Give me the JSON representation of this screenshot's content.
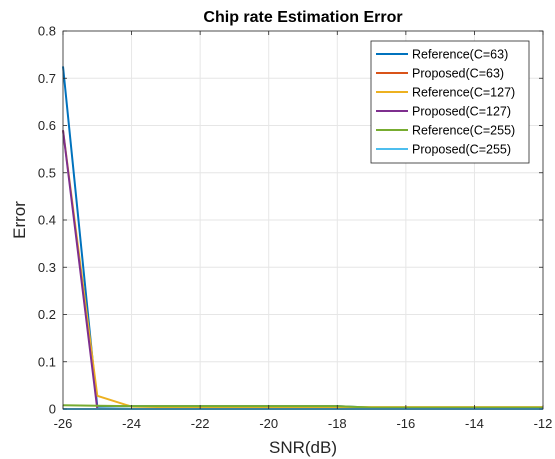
{
  "chart_data": {
    "type": "line",
    "title": "Chip rate Estimation Error",
    "xlabel": "SNR(dB)",
    "ylabel": "Error",
    "xlim": [
      -26,
      -12
    ],
    "ylim": [
      0,
      0.8
    ],
    "x_ticks": [
      -26,
      -24,
      -22,
      -20,
      -18,
      -16,
      -14,
      -12
    ],
    "y_ticks": [
      0,
      0.1,
      0.2,
      0.3,
      0.4,
      0.5,
      0.6,
      0.7,
      0.8
    ],
    "grid": true,
    "legend_position": "top-right",
    "x": [
      -26,
      -25,
      -24,
      -23,
      -22,
      -21,
      -20,
      -19,
      -18,
      -17,
      -16,
      -15,
      -14,
      -13,
      -12
    ],
    "series": [
      {
        "name": "Reference(C=63)",
        "color": "#0072BD",
        "values": [
          0.725,
          0.005,
          0.006,
          0.006,
          0.006,
          0.006,
          0.006,
          0.006,
          0.006,
          0.003,
          0.003,
          0.003,
          0.003,
          0.003,
          0.003
        ]
      },
      {
        "name": "Proposed(C=63)",
        "color": "#D95319",
        "values": [
          0.0,
          0.0,
          0.0,
          0.0,
          0.0,
          0.0,
          0.0,
          0.0,
          0.0,
          0.0,
          0.0,
          0.0,
          0.0,
          0.0,
          0.0
        ]
      },
      {
        "name": "Reference(C=127)",
        "color": "#EDB120",
        "values": [
          0.59,
          0.028,
          0.005,
          0.004,
          0.004,
          0.004,
          0.004,
          0.004,
          0.004,
          0.004,
          0.004,
          0.004,
          0.004,
          0.004,
          0.004
        ]
      },
      {
        "name": "Proposed(C=127)",
        "color": "#7E2F8E",
        "values": [
          0.59,
          0.0,
          0.0,
          0.0,
          0.0,
          0.0,
          0.0,
          0.0,
          0.0,
          0.0,
          0.0,
          0.0,
          0.0,
          0.0,
          0.0
        ]
      },
      {
        "name": "Reference(C=255)",
        "color": "#77AC30",
        "values": [
          0.008,
          0.007,
          0.006,
          0.006,
          0.006,
          0.006,
          0.006,
          0.006,
          0.006,
          0.003,
          0.003,
          0.003,
          0.003,
          0.003,
          0.003
        ]
      },
      {
        "name": "Proposed(C=255)",
        "color": "#4DBEEE",
        "values": [
          0.0,
          0.0,
          0.0,
          0.0,
          0.0,
          0.0,
          0.0,
          0.0,
          0.0,
          0.0,
          0.0,
          0.0,
          0.0,
          0.0,
          0.0
        ]
      }
    ]
  }
}
